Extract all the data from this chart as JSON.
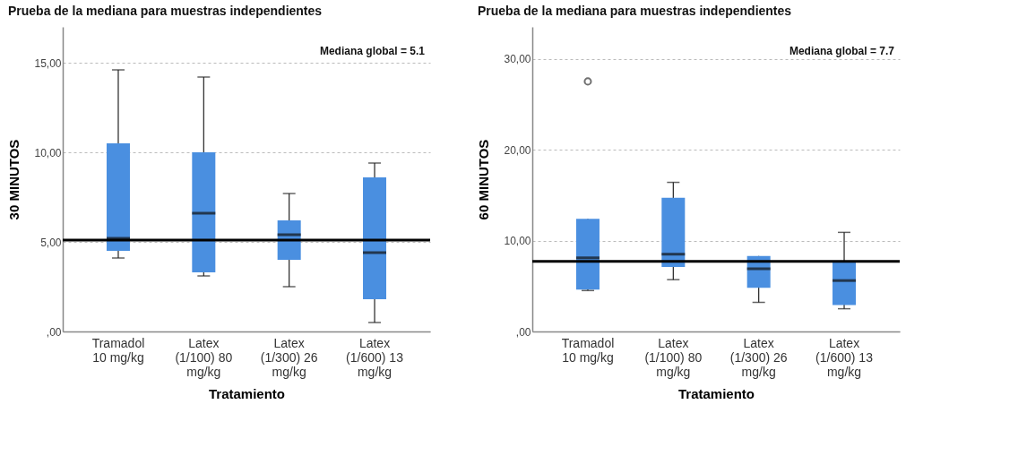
{
  "chart_data": [
    {
      "type": "box",
      "title": "Prueba de la mediana para muestras independientes",
      "xlabel": "Tratamiento",
      "ylabel": "30 MINUTOS",
      "categories": [
        "Tramadol 10 mg/kg",
        "Latex (1/100) 80 mg/kg",
        "Latex (1/300) 26 mg/kg",
        "Latex (1/600) 13 mg/kg"
      ],
      "color": "#4a8fe0",
      "boxes": [
        {
          "low": 4.1,
          "q1": 4.5,
          "median": 5.2,
          "q3": 10.5,
          "high": 14.6
        },
        {
          "low": 3.1,
          "q1": 3.3,
          "median": 6.6,
          "q3": 10.0,
          "high": 14.2
        },
        {
          "low": 2.5,
          "q1": 4.0,
          "median": 5.4,
          "q3": 6.2,
          "high": 7.7
        },
        {
          "low": 0.5,
          "q1": 1.8,
          "median": 4.4,
          "q3": 8.6,
          "high": 9.4
        }
      ],
      "ylim": [
        0,
        17
      ],
      "yticks": [
        {
          "value": 0,
          "label": ",00"
        },
        {
          "value": 5,
          "label": "5,00"
        },
        {
          "value": 10,
          "label": "10,00"
        },
        {
          "value": 15,
          "label": "15,00"
        }
      ],
      "grid": "y",
      "ref_lines": [
        {
          "axis": "y",
          "value": 5.1,
          "label": "Mediana global = 5.1"
        }
      ]
    },
    {
      "type": "box",
      "title": "Prueba de la mediana para muestras independientes",
      "xlabel": "Tratamiento",
      "ylabel": "60 MINUTOS",
      "categories": [
        "Tramadol 10 mg/kg",
        "Latex (1/100) 80 mg/kg",
        "Latex (1/300) 26 mg/kg",
        "Latex (1/600) 13 mg/kg"
      ],
      "color": "#4a8fe0",
      "boxes": [
        {
          "low": 4.5,
          "q1": 4.6,
          "median": 8.1,
          "q3": 12.4,
          "high": 12.4,
          "outliers": [
            27.5
          ]
        },
        {
          "low": 5.7,
          "q1": 7.1,
          "median": 8.5,
          "q3": 14.7,
          "high": 16.4
        },
        {
          "low": 3.2,
          "q1": 4.8,
          "median": 6.9,
          "q3": 8.3,
          "high": 8.3
        },
        {
          "low": 2.5,
          "q1": 2.9,
          "median": 5.6,
          "q3": 7.7,
          "high": 10.9
        }
      ],
      "ylim": [
        0,
        33.5
      ],
      "yticks": [
        {
          "value": 0,
          "label": ",00"
        },
        {
          "value": 10,
          "label": "10,00"
        },
        {
          "value": 20,
          "label": "20,00"
        },
        {
          "value": 30,
          "label": "30,00"
        }
      ],
      "grid": "y",
      "ref_lines": [
        {
          "axis": "y",
          "value": 7.7,
          "label": "Mediana global = 7.7"
        }
      ]
    }
  ]
}
